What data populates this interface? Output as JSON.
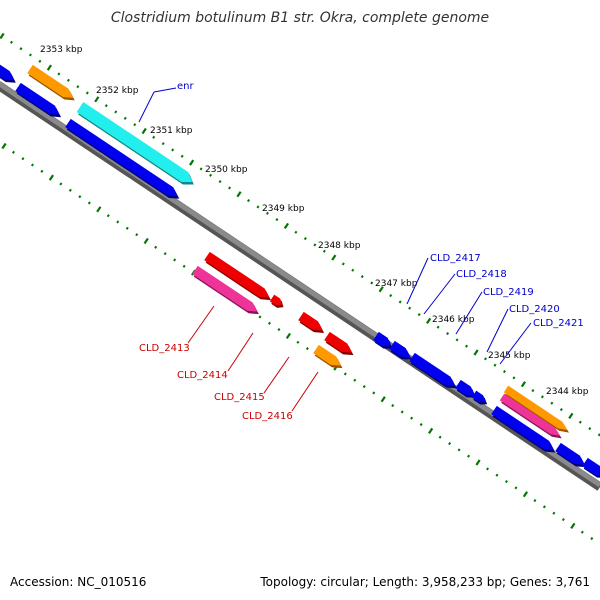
{
  "title": "Clostridium botulinum B1 str. Okra, complete genome",
  "footer": {
    "accession": "Accession: NC_010516",
    "topology": "Topology: circular; Length: 3,958,233 bp; Genes: 3,761"
  },
  "colors": {
    "backbone": "#777777",
    "tick": "#007700",
    "blue_gene": "#0000ee",
    "cyan_gene": "#22eeee",
    "orange_gene": "#ff9900",
    "red_gene": "#ee0000",
    "pink_gene": "#ee3399",
    "blue_label": "#0000cc",
    "red_label": "#cc0000"
  },
  "position_labels": [
    "2353 kbp",
    "2352 kbp",
    "2351 kbp",
    "2350 kbp",
    "2349 kbp",
    "2348 kbp",
    "2347 kbp",
    "2346 kbp",
    "2345 kbp",
    "2344 kbp"
  ],
  "gene_labels": {
    "enr": "enr",
    "cld_2413": "CLD_2413",
    "cld_2414": "CLD_2414",
    "cld_2415": "CLD_2415",
    "cld_2416": "CLD_2416",
    "cld_2417": "CLD_2417",
    "cld_2418": "CLD_2418",
    "cld_2419": "CLD_2419",
    "cld_2420": "CLD_2420",
    "cld_2421": "CLD_2421"
  }
}
